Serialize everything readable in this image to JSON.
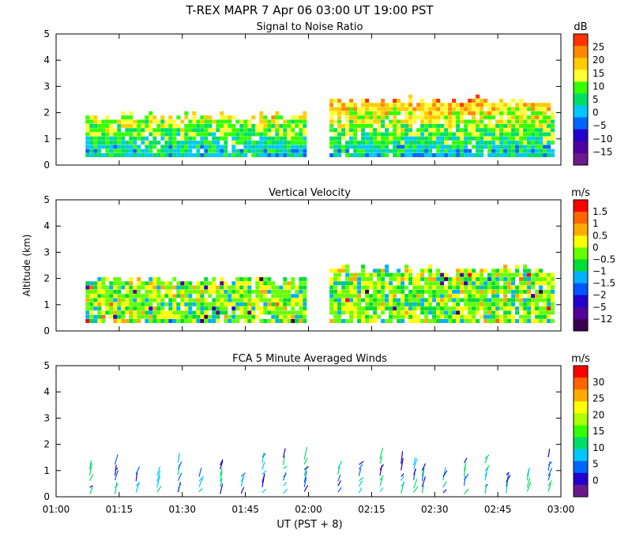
{
  "header": {
    "title": "T-REX   MAPR   7 Apr 06   03:00 UT   19:00   PST"
  },
  "shared_axes": {
    "xlabel": "UT  (PST + 8)",
    "ylabel": "Altitude (km)",
    "x_range_min": [
      60,
      180
    ],
    "x_ticks_min": [
      60,
      75,
      90,
      105,
      120,
      135,
      150,
      165,
      180
    ],
    "x_tick_labels": [
      "01:00",
      "01:15",
      "01:30",
      "01:45",
      "02:00",
      "02:15",
      "02:30",
      "02:45",
      "03:00"
    ],
    "y_range_km": [
      0,
      5
    ],
    "y_ticks": [
      0,
      1,
      2,
      3,
      4,
      5
    ],
    "data_gap_min": [
      120,
      125
    ]
  },
  "chart_data": [
    {
      "type": "heatmap",
      "title": "Signal to Noise Ratio",
      "ylabel": "",
      "colorbar": {
        "unit": "dB",
        "labels": [
          "25",
          "20",
          "15",
          "10",
          "5",
          "0",
          "−5",
          "−10",
          "−15"
        ],
        "colors": [
          "#ff3300",
          "#ff8800",
          "#ffcc00",
          "#ffff33",
          "#33ff00",
          "#00dd66",
          "#00c8ff",
          "#0066ff",
          "#2200cc",
          "#5000a0",
          "#6a1a8a"
        ]
      },
      "coverage": [
        {
          "x_min": [
            67,
            119
          ],
          "alt_km": [
            0.3,
            1.8
          ]
        },
        {
          "x_min": [
            125,
            178
          ],
          "alt_km": [
            0.3,
            2.4
          ]
        }
      ]
    },
    {
      "type": "heatmap",
      "title": "Vertical Velocity",
      "ylabel": "Altitude (km)",
      "colorbar": {
        "unit": "m/s",
        "labels": [
          "1.5",
          "1",
          "0.5",
          "0",
          "−0.5",
          "−1",
          "−1.5",
          "−2",
          "−5",
          "−12"
        ],
        "colors": [
          "#ff0000",
          "#ff6600",
          "#ffaa00",
          "#ffff00",
          "#66ff00",
          "#00dd33",
          "#00b0ff",
          "#0055ff",
          "#2200cc",
          "#550099",
          "#3a0050"
        ]
      },
      "coverage": [
        {
          "x_min": [
            67,
            119
          ],
          "alt_km": [
            0.3,
            1.9
          ]
        },
        {
          "x_min": [
            125,
            178
          ],
          "alt_km": [
            0.3,
            2.3
          ]
        }
      ]
    },
    {
      "type": "scatter",
      "title": "FCA 5 Minute Averaged Winds",
      "ylabel": "",
      "colorbar": {
        "unit": "m/s",
        "labels": [
          "30",
          "25",
          "20",
          "15",
          "10",
          "5",
          "0"
        ],
        "colors": [
          "#ff0000",
          "#ff6600",
          "#ffaa00",
          "#ffff00",
          "#aaff00",
          "#33ff00",
          "#00dd66",
          "#00c8ff",
          "#0066ff",
          "#2200cc",
          "#6a1a8a"
        ]
      },
      "wind_profiles_min": [
        68,
        74,
        79,
        84,
        89,
        94,
        99,
        104,
        109,
        114,
        119,
        127,
        132,
        137,
        142,
        145,
        147,
        152,
        157,
        162,
        167,
        172,
        177
      ]
    }
  ]
}
